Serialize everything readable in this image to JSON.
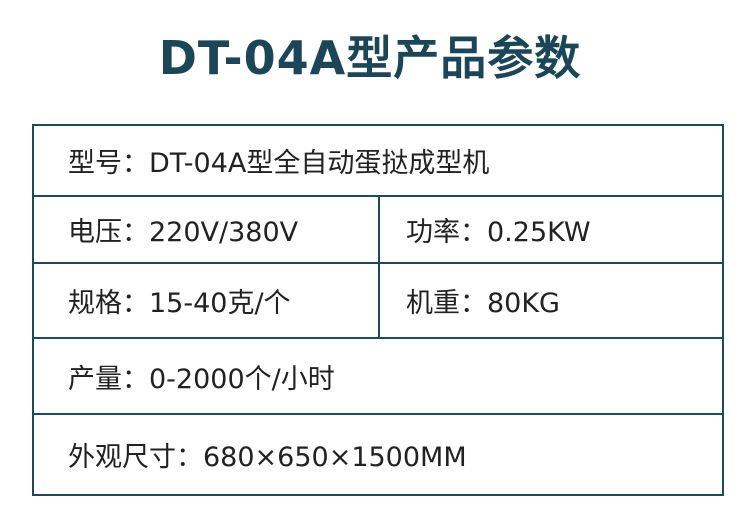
{
  "title": "DT-04A型产品参数",
  "colors": {
    "title": "#1b4657",
    "border": "#1f4a5a"
  },
  "rows": [
    {
      "cells": [
        "型号：DT-04A型全自动蛋挞成型机"
      ]
    },
    {
      "cells": [
        "电压：220V/380V",
        "功率：0.25KW"
      ]
    },
    {
      "cells": [
        "规格：15-40克/个",
        "机重：80KG"
      ]
    },
    {
      "cells": [
        "产量：0-2000个/小时"
      ]
    },
    {
      "cells": [
        "外观尺寸：680×650×1500MM"
      ]
    }
  ]
}
